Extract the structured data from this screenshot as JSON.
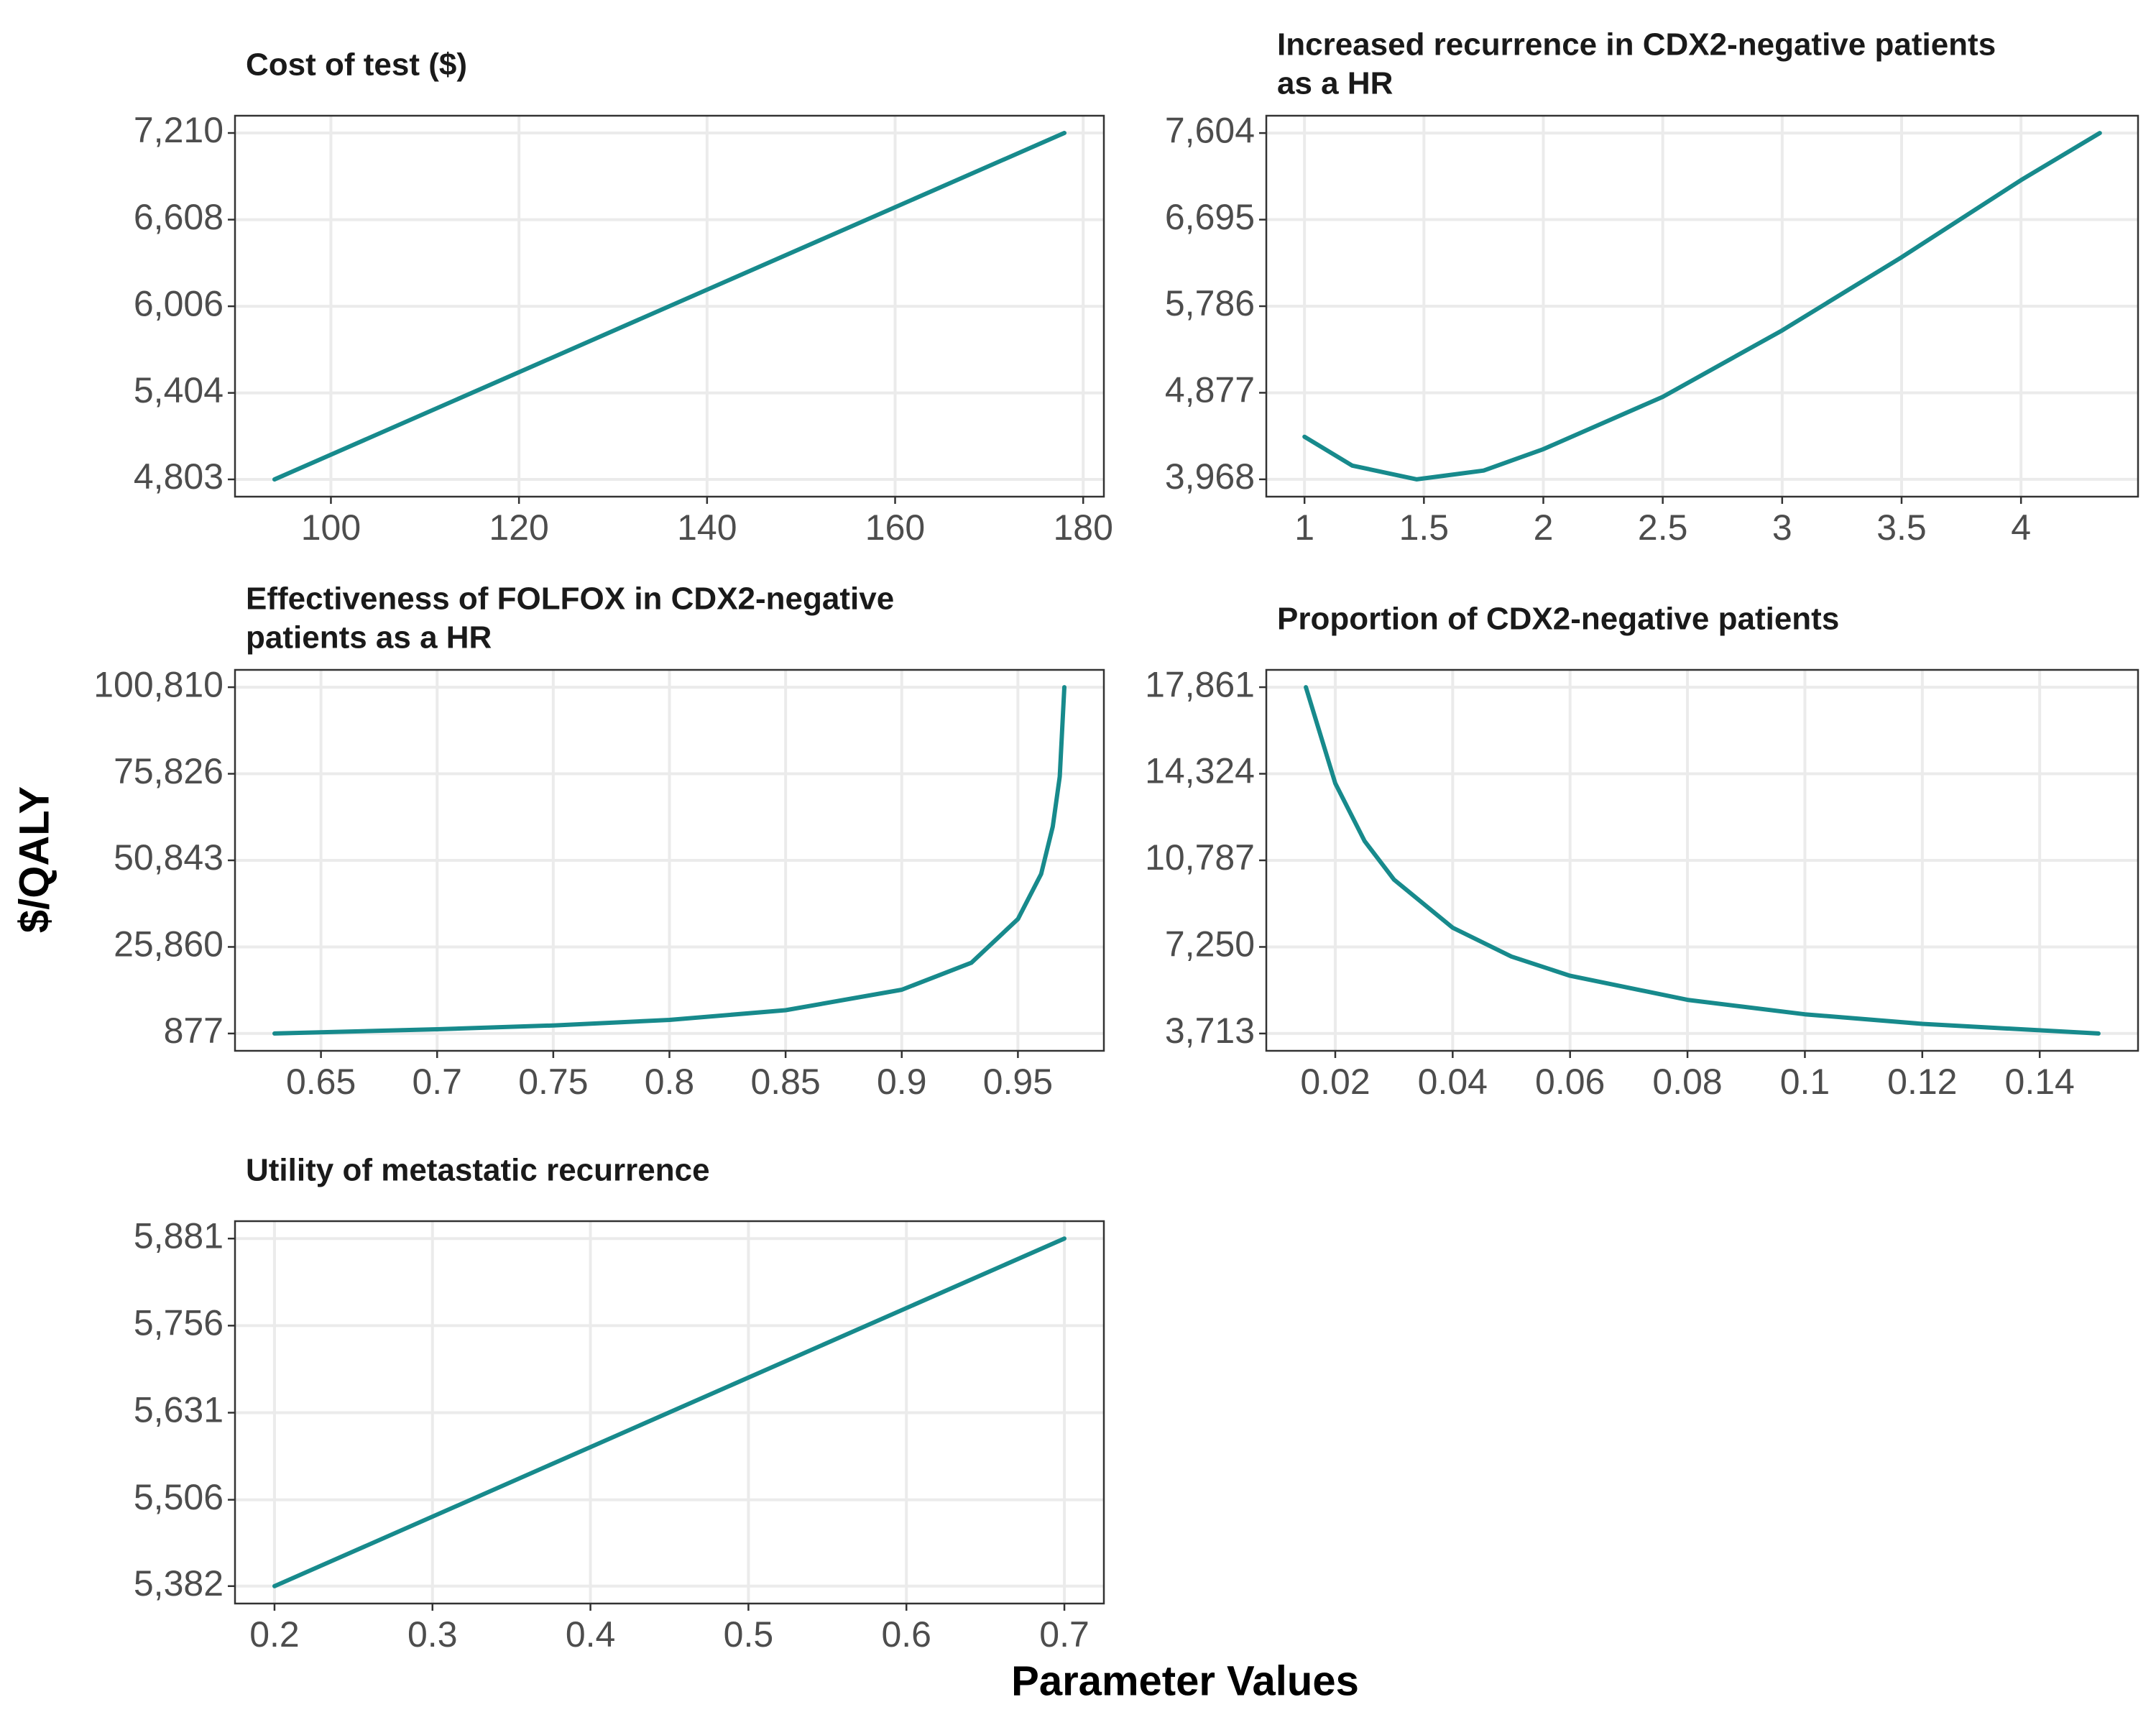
{
  "y_label": "$/QALY",
  "x_label": "Parameter Values",
  "chart_data": [
    {
      "type": "line",
      "title": [
        "Cost of test ($)"
      ],
      "color": "#178a8c",
      "grid": true,
      "x": [
        94,
        178
      ],
      "values": [
        4803,
        7210
      ],
      "xlim": [
        89.8,
        182.2
      ],
      "ylim": [
        4683,
        7330
      ],
      "xticks": [
        100,
        120,
        140,
        160,
        180
      ],
      "yticks": [
        {
          "value": 4803,
          "label": "4,803"
        },
        {
          "value": 5404,
          "label": "5,404"
        },
        {
          "value": 6006,
          "label": "6,006"
        },
        {
          "value": 6608,
          "label": "6,608"
        },
        {
          "value": 7210,
          "label": "7,210"
        }
      ]
    },
    {
      "type": "line",
      "title": [
        "Increased recurrence in CDX2-negative patients",
        "as a HR"
      ],
      "color": "#178a8c",
      "grid": true,
      "x": [
        1,
        1.2,
        1.47,
        1.75,
        2,
        2.5,
        3,
        3.5,
        4,
        4.33
      ],
      "values": [
        4415,
        4112,
        3968,
        4060,
        4285,
        4834,
        5532,
        6300,
        7110,
        7604
      ],
      "xlim": [
        0.84,
        4.49
      ],
      "ylim": [
        3786,
        7786
      ],
      "xticks": [
        1,
        1.5,
        2,
        2.5,
        3,
        3.5,
        4
      ],
      "yticks": [
        {
          "value": 3968,
          "label": "3,968"
        },
        {
          "value": 4877,
          "label": "4,877"
        },
        {
          "value": 5786,
          "label": "5,786"
        },
        {
          "value": 6695,
          "label": "6,695"
        },
        {
          "value": 7604,
          "label": "7,604"
        }
      ]
    },
    {
      "type": "line",
      "title": [
        "Effectiveness of FOLFOX in CDX2-negative",
        "patients as a HR"
      ],
      "color": "#178a8c",
      "grid": true,
      "x": [
        0.63,
        0.7,
        0.75,
        0.8,
        0.85,
        0.9,
        0.93,
        0.95,
        0.96,
        0.965,
        0.968,
        0.97
      ],
      "values": [
        877,
        2100,
        3200,
        4800,
        7600,
        13500,
        21300,
        33900,
        46900,
        60600,
        75000,
        100810
      ],
      "xlim": [
        0.613,
        0.987
      ],
      "ylim": [
        -4120,
        105807
      ],
      "xticks": [
        0.65,
        0.7,
        0.75,
        0.8,
        0.85,
        0.9,
        0.95
      ],
      "yticks": [
        {
          "value": 877,
          "label": "877"
        },
        {
          "value": 25860,
          "label": "25,860"
        },
        {
          "value": 50843,
          "label": "50,843"
        },
        {
          "value": 75826,
          "label": "75,826"
        },
        {
          "value": 100810,
          "label": "100,810"
        }
      ]
    },
    {
      "type": "line",
      "title": [
        "Proportion of CDX2-negative patients"
      ],
      "color": "#178a8c",
      "grid": true,
      "x": [
        0.015,
        0.02,
        0.025,
        0.03,
        0.04,
        0.05,
        0.06,
        0.08,
        0.1,
        0.12,
        0.15
      ],
      "values": [
        17861,
        13931,
        11573,
        10001,
        8036,
        6857,
        6071,
        5089,
        4499,
        4106,
        3713
      ],
      "xlim": [
        0.00825,
        0.15675
      ],
      "ylim": [
        3006,
        18568
      ],
      "xticks": [
        0.02,
        0.04,
        0.06,
        0.08,
        0.1,
        0.12,
        0.14
      ],
      "yticks": [
        {
          "value": 3713,
          "label": "3,713"
        },
        {
          "value": 7250,
          "label": "7,250"
        },
        {
          "value": 10787,
          "label": "10,787"
        },
        {
          "value": 14324,
          "label": "14,324"
        },
        {
          "value": 17861,
          "label": "17,861"
        }
      ]
    },
    {
      "type": "line",
      "title": [
        "Utility of metastatic recurrence"
      ],
      "color": "#178a8c",
      "grid": true,
      "x": [
        0.2,
        0.7
      ],
      "values": [
        5382,
        5881
      ],
      "xlim": [
        0.175,
        0.725
      ],
      "ylim": [
        5357,
        5906
      ],
      "xticks": [
        0.2,
        0.3,
        0.4,
        0.5,
        0.6,
        0.7
      ],
      "yticks": [
        {
          "value": 5382,
          "label": "5,382"
        },
        {
          "value": 5506,
          "label": "5,506"
        },
        {
          "value": 5631,
          "label": "5,631"
        },
        {
          "value": 5756,
          "label": "5,756"
        },
        {
          "value": 5881,
          "label": "5,881"
        }
      ]
    }
  ]
}
